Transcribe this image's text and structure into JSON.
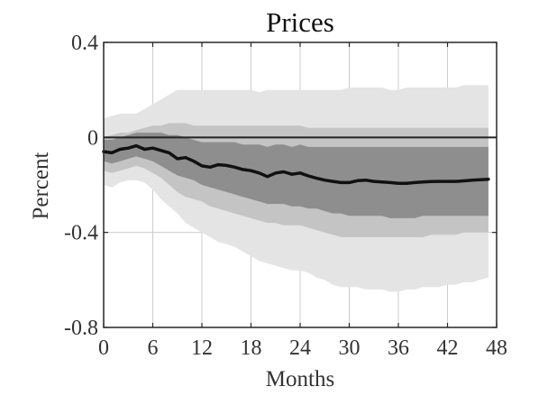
{
  "chart_data": {
    "type": "line",
    "title": "Prices",
    "xlabel": "Months",
    "ylabel": "Percent",
    "xlim": [
      0,
      48
    ],
    "ylim": [
      -0.8,
      0.4
    ],
    "x_ticks": [
      0,
      6,
      12,
      18,
      24,
      30,
      36,
      42,
      48
    ],
    "y_ticks": [
      0.4,
      0,
      -0.4,
      -0.8
    ],
    "y_tick_labels": [
      "0.4",
      "0",
      "-0.4",
      "-0.8"
    ],
    "grid": true,
    "colors": {
      "outer_band": "#e4e4e4",
      "middle_band": "#c4c4c4",
      "inner_band": "#8e8e8e",
      "median": "#111111",
      "zero_line": "#222222",
      "grid": "#cccccc"
    },
    "x": [
      0,
      1,
      2,
      3,
      4,
      5,
      6,
      7,
      8,
      9,
      10,
      11,
      12,
      13,
      14,
      15,
      16,
      17,
      18,
      19,
      20,
      21,
      22,
      23,
      24,
      25,
      26,
      27,
      28,
      29,
      30,
      31,
      32,
      33,
      34,
      35,
      36,
      37,
      38,
      39,
      40,
      41,
      42,
      43,
      44,
      45,
      46,
      47
    ],
    "median": [
      -0.06,
      -0.065,
      -0.05,
      -0.045,
      -0.035,
      -0.05,
      -0.045,
      -0.055,
      -0.065,
      -0.09,
      -0.085,
      -0.1,
      -0.12,
      -0.125,
      -0.115,
      -0.118,
      -0.125,
      -0.135,
      -0.14,
      -0.15,
      -0.165,
      -0.15,
      -0.145,
      -0.155,
      -0.15,
      -0.162,
      -0.172,
      -0.18,
      -0.185,
      -0.19,
      -0.19,
      -0.182,
      -0.18,
      -0.185,
      -0.188,
      -0.19,
      -0.193,
      -0.193,
      -0.19,
      -0.188,
      -0.186,
      -0.185,
      -0.185,
      -0.185,
      -0.183,
      -0.18,
      -0.178,
      -0.176
    ],
    "bands": [
      {
        "level": "outer",
        "lower": [
          -0.2,
          -0.21,
          -0.19,
          -0.18,
          -0.18,
          -0.19,
          -0.22,
          -0.26,
          -0.29,
          -0.32,
          -0.36,
          -0.38,
          -0.4,
          -0.42,
          -0.44,
          -0.45,
          -0.46,
          -0.48,
          -0.5,
          -0.52,
          -0.53,
          -0.54,
          -0.55,
          -0.56,
          -0.56,
          -0.57,
          -0.59,
          -0.6,
          -0.62,
          -0.63,
          -0.63,
          -0.63,
          -0.64,
          -0.64,
          -0.64,
          -0.65,
          -0.65,
          -0.64,
          -0.64,
          -0.63,
          -0.63,
          -0.63,
          -0.62,
          -0.62,
          -0.61,
          -0.61,
          -0.6,
          -0.59
        ],
        "upper": [
          0.08,
          0.09,
          0.1,
          0.1,
          0.1,
          0.12,
          0.14,
          0.16,
          0.18,
          0.2,
          0.2,
          0.2,
          0.2,
          0.2,
          0.2,
          0.2,
          0.2,
          0.2,
          0.2,
          0.19,
          0.2,
          0.2,
          0.2,
          0.2,
          0.2,
          0.2,
          0.2,
          0.2,
          0.2,
          0.2,
          0.21,
          0.21,
          0.21,
          0.21,
          0.21,
          0.2,
          0.2,
          0.21,
          0.21,
          0.21,
          0.21,
          0.21,
          0.21,
          0.21,
          0.22,
          0.22,
          0.22,
          0.22
        ]
      },
      {
        "level": "middle",
        "lower": [
          -0.14,
          -0.15,
          -0.14,
          -0.13,
          -0.12,
          -0.13,
          -0.15,
          -0.17,
          -0.2,
          -0.23,
          -0.25,
          -0.26,
          -0.27,
          -0.29,
          -0.3,
          -0.31,
          -0.32,
          -0.33,
          -0.34,
          -0.35,
          -0.36,
          -0.36,
          -0.37,
          -0.37,
          -0.37,
          -0.38,
          -0.39,
          -0.4,
          -0.41,
          -0.42,
          -0.42,
          -0.42,
          -0.42,
          -0.42,
          -0.42,
          -0.42,
          -0.42,
          -0.42,
          -0.42,
          -0.42,
          -0.41,
          -0.41,
          -0.41,
          -0.41,
          -0.4,
          -0.4,
          -0.4,
          -0.4
        ],
        "upper": [
          0.0,
          0.01,
          0.02,
          0.02,
          0.03,
          0.04,
          0.05,
          0.05,
          0.06,
          0.06,
          0.06,
          0.05,
          0.05,
          0.05,
          0.05,
          0.05,
          0.05,
          0.05,
          0.05,
          0.05,
          0.05,
          0.05,
          0.05,
          0.05,
          0.05,
          0.04,
          0.04,
          0.04,
          0.04,
          0.04,
          0.04,
          0.04,
          0.04,
          0.04,
          0.04,
          0.04,
          0.04,
          0.04,
          0.04,
          0.04,
          0.04,
          0.04,
          0.04,
          0.04,
          0.04,
          0.04,
          0.04,
          0.04
        ]
      },
      {
        "level": "inner",
        "lower": [
          -0.1,
          -0.11,
          -0.1,
          -0.09,
          -0.08,
          -0.09,
          -0.1,
          -0.12,
          -0.14,
          -0.16,
          -0.17,
          -0.18,
          -0.2,
          -0.21,
          -0.22,
          -0.23,
          -0.24,
          -0.25,
          -0.26,
          -0.27,
          -0.28,
          -0.28,
          -0.28,
          -0.29,
          -0.29,
          -0.3,
          -0.3,
          -0.31,
          -0.32,
          -0.32,
          -0.33,
          -0.33,
          -0.33,
          -0.33,
          -0.33,
          -0.34,
          -0.34,
          -0.34,
          -0.34,
          -0.33,
          -0.33,
          -0.33,
          -0.33,
          -0.33,
          -0.33,
          -0.33,
          -0.33,
          -0.33
        ],
        "upper": [
          -0.01,
          -0.01,
          0.0,
          0.01,
          0.02,
          0.02,
          0.02,
          0.02,
          0.01,
          0.01,
          0.0,
          -0.01,
          -0.02,
          -0.02,
          -0.02,
          -0.02,
          -0.02,
          -0.03,
          -0.03,
          -0.03,
          -0.04,
          -0.03,
          -0.03,
          -0.04,
          -0.03,
          -0.04,
          -0.04,
          -0.04,
          -0.04,
          -0.04,
          -0.04,
          -0.04,
          -0.04,
          -0.04,
          -0.04,
          -0.04,
          -0.04,
          -0.04,
          -0.04,
          -0.04,
          -0.04,
          -0.04,
          -0.04,
          -0.04,
          -0.04,
          -0.04,
          -0.04,
          -0.04
        ]
      }
    ]
  }
}
